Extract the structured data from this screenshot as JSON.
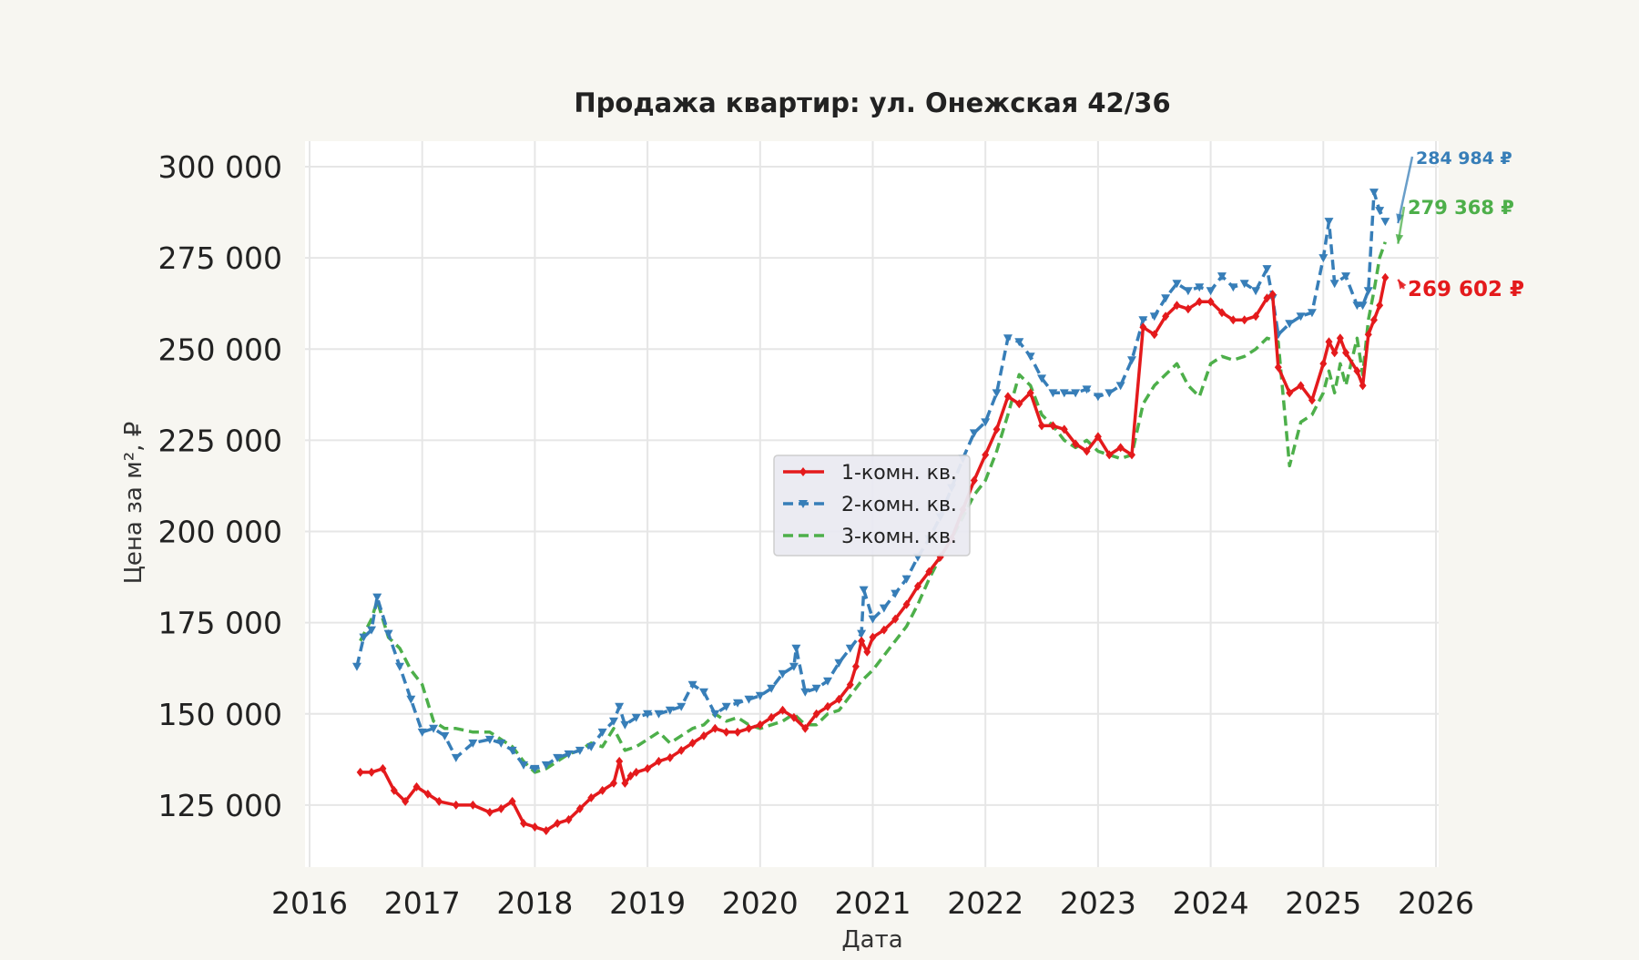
{
  "chart_data": {
    "type": "line",
    "title": "Продажа квартир: ул. Онежская 42/36",
    "xlabel": "Дата",
    "ylabel": "Цена за м², ₽",
    "xlim": [
      2016.0,
      2026.0
    ],
    "ylim": [
      108000,
      307000
    ],
    "x_ticks": [
      2016,
      2017,
      2018,
      2019,
      2020,
      2021,
      2022,
      2023,
      2024,
      2025,
      2026
    ],
    "x_tick_labels": [
      "2016",
      "2017",
      "2018",
      "2019",
      "2020",
      "2021",
      "2022",
      "2023",
      "2024",
      "2025",
      "2026"
    ],
    "y_ticks": [
      125000,
      150000,
      175000,
      200000,
      225000,
      250000,
      275000,
      300000
    ],
    "y_tick_labels": [
      "125 000",
      "150 000",
      "175 000",
      "200 000",
      "225 000",
      "250 000",
      "275 000",
      "300 000"
    ],
    "grid": true,
    "legend_position": "center",
    "series": [
      {
        "name": "1-комн. кв.",
        "color": "#e41a1c",
        "linestyle": "solid",
        "marker": "diamond",
        "x": [
          2016.45,
          2016.55,
          2016.65,
          2016.75,
          2016.85,
          2016.95,
          2017.05,
          2017.15,
          2017.3,
          2017.45,
          2017.6,
          2017.7,
          2017.8,
          2017.9,
          2018.0,
          2018.1,
          2018.2,
          2018.3,
          2018.4,
          2018.5,
          2018.6,
          2018.7,
          2018.75,
          2018.8,
          2018.85,
          2018.9,
          2019.0,
          2019.1,
          2019.2,
          2019.3,
          2019.4,
          2019.5,
          2019.6,
          2019.7,
          2019.8,
          2019.9,
          2020.0,
          2020.1,
          2020.2,
          2020.3,
          2020.4,
          2020.5,
          2020.6,
          2020.7,
          2020.8,
          2020.85,
          2020.9,
          2020.95,
          2021.0,
          2021.1,
          2021.2,
          2021.3,
          2021.4,
          2021.5,
          2021.6,
          2021.7,
          2021.8,
          2021.9,
          2022.0,
          2022.1,
          2022.2,
          2022.3,
          2022.4,
          2022.5,
          2022.6,
          2022.7,
          2022.8,
          2022.9,
          2023.0,
          2023.1,
          2023.2,
          2023.3,
          2023.4,
          2023.5,
          2023.6,
          2023.7,
          2023.8,
          2023.9,
          2024.0,
          2024.1,
          2024.2,
          2024.3,
          2024.4,
          2024.5,
          2024.55,
          2024.6,
          2024.7,
          2024.8,
          2024.9,
          2025.0,
          2025.05,
          2025.1,
          2025.15,
          2025.2,
          2025.3,
          2025.35,
          2025.4,
          2025.45,
          2025.5,
          2025.55
        ],
        "values": [
          134000,
          134000,
          135000,
          129000,
          126000,
          130000,
          128000,
          126000,
          125000,
          125000,
          123000,
          124000,
          126000,
          120000,
          119000,
          118000,
          120000,
          121000,
          124000,
          127000,
          129000,
          131000,
          137000,
          131000,
          133000,
          134000,
          135000,
          137000,
          138000,
          140000,
          142000,
          144000,
          146000,
          145000,
          145000,
          146000,
          147000,
          149000,
          151000,
          149000,
          146000,
          150000,
          152000,
          154000,
          158000,
          163000,
          170000,
          167000,
          171000,
          173000,
          176000,
          180000,
          185000,
          189000,
          193000,
          198000,
          206000,
          214000,
          221000,
          228000,
          237000,
          235000,
          238000,
          229000,
          229000,
          228000,
          224000,
          222000,
          226000,
          221000,
          223000,
          221000,
          256000,
          254000,
          259000,
          262000,
          261000,
          263000,
          263000,
          260000,
          258000,
          258000,
          259000,
          264000,
          265000,
          245000,
          238000,
          240000,
          236000,
          246000,
          252000,
          249000,
          253000,
          249000,
          244000,
          240000,
          254000,
          258000,
          262000,
          269602
        ]
      },
      {
        "name": "2-комн. кв.",
        "color": "#377eb8",
        "linestyle": "dashed",
        "marker": "triangle-down",
        "x": [
          2016.42,
          2016.48,
          2016.55,
          2016.6,
          2016.7,
          2016.8,
          2016.9,
          2017.0,
          2017.1,
          2017.2,
          2017.3,
          2017.45,
          2017.6,
          2017.7,
          2017.8,
          2017.9,
          2018.0,
          2018.1,
          2018.2,
          2018.3,
          2018.4,
          2018.5,
          2018.6,
          2018.7,
          2018.75,
          2018.8,
          2018.9,
          2019.0,
          2019.1,
          2019.2,
          2019.3,
          2019.4,
          2019.5,
          2019.6,
          2019.7,
          2019.8,
          2019.9,
          2020.0,
          2020.1,
          2020.2,
          2020.3,
          2020.32,
          2020.4,
          2020.5,
          2020.6,
          2020.7,
          2020.8,
          2020.9,
          2020.92,
          2021.0,
          2021.1,
          2021.2,
          2021.3,
          2021.4,
          2021.5,
          2021.6,
          2021.7,
          2021.8,
          2021.9,
          2022.0,
          2022.1,
          2022.2,
          2022.3,
          2022.4,
          2022.5,
          2022.6,
          2022.7,
          2022.8,
          2022.9,
          2023.0,
          2023.1,
          2023.2,
          2023.3,
          2023.4,
          2023.5,
          2023.6,
          2023.7,
          2023.8,
          2023.9,
          2024.0,
          2024.1,
          2024.2,
          2024.3,
          2024.4,
          2024.5,
          2024.55,
          2024.6,
          2024.7,
          2024.8,
          2024.9,
          2025.0,
          2025.05,
          2025.1,
          2025.2,
          2025.3,
          2025.35,
          2025.4,
          2025.45,
          2025.5,
          2025.55
        ],
        "values": [
          163000,
          171000,
          173000,
          182000,
          172000,
          163000,
          154000,
          145000,
          146000,
          144000,
          138000,
          142000,
          143000,
          142000,
          140000,
          136000,
          135000,
          136000,
          138000,
          139000,
          140000,
          141000,
          145000,
          148000,
          152000,
          147000,
          149000,
          150000,
          150000,
          151000,
          152000,
          158000,
          156000,
          150000,
          152000,
          153000,
          154000,
          155000,
          157000,
          161000,
          163000,
          168000,
          156000,
          157000,
          159000,
          164000,
          168000,
          172000,
          184000,
          176000,
          179000,
          183000,
          187000,
          193000,
          198000,
          204000,
          212000,
          220000,
          227000,
          230000,
          238000,
          253000,
          252000,
          248000,
          242000,
          238000,
          238000,
          238000,
          239000,
          237000,
          238000,
          240000,
          247000,
          258000,
          259000,
          264000,
          268000,
          266000,
          267000,
          266000,
          270000,
          267000,
          268000,
          266000,
          272000,
          264000,
          254000,
          257000,
          259000,
          260000,
          275000,
          285000,
          268000,
          270000,
          262000,
          262000,
          266000,
          293000,
          288000,
          284984
        ]
      },
      {
        "name": "3-комн. кв.",
        "color": "#4daf4a",
        "linestyle": "dashed",
        "marker": "none",
        "x": [
          2016.45,
          2016.55,
          2016.6,
          2016.7,
          2016.8,
          2016.9,
          2017.0,
          2017.1,
          2017.2,
          2017.3,
          2017.45,
          2017.6,
          2017.7,
          2017.8,
          2017.9,
          2018.0,
          2018.1,
          2018.2,
          2018.3,
          2018.4,
          2018.5,
          2018.6,
          2018.7,
          2018.8,
          2018.9,
          2019.0,
          2019.1,
          2019.2,
          2019.3,
          2019.4,
          2019.5,
          2019.6,
          2019.7,
          2019.8,
          2019.9,
          2020.0,
          2020.1,
          2020.2,
          2020.3,
          2020.4,
          2020.5,
          2020.6,
          2020.7,
          2020.8,
          2020.9,
          2021.0,
          2021.1,
          2021.2,
          2021.3,
          2021.4,
          2021.5,
          2021.6,
          2021.7,
          2021.8,
          2021.9,
          2022.0,
          2022.1,
          2022.2,
          2022.3,
          2022.4,
          2022.5,
          2022.6,
          2022.7,
          2022.8,
          2022.9,
          2023.0,
          2023.1,
          2023.2,
          2023.3,
          2023.4,
          2023.5,
          2023.6,
          2023.7,
          2023.8,
          2023.9,
          2024.0,
          2024.1,
          2024.2,
          2024.3,
          2024.4,
          2024.5,
          2024.6,
          2024.7,
          2024.8,
          2024.9,
          2025.0,
          2025.05,
          2025.1,
          2025.15,
          2025.2,
          2025.3,
          2025.35,
          2025.4,
          2025.45,
          2025.5,
          2025.55
        ],
        "values": [
          170000,
          176000,
          181000,
          171000,
          168000,
          162000,
          158000,
          148000,
          146000,
          146000,
          145000,
          145000,
          143000,
          141000,
          137000,
          134000,
          135000,
          137000,
          139000,
          140000,
          142000,
          141000,
          146000,
          140000,
          141000,
          143000,
          145000,
          142000,
          144000,
          146000,
          147000,
          150000,
          148000,
          149000,
          147000,
          146000,
          147000,
          148000,
          150000,
          147000,
          147000,
          150000,
          151000,
          155000,
          159000,
          162000,
          166000,
          170000,
          174000,
          180000,
          187000,
          193000,
          198000,
          204000,
          210000,
          214000,
          222000,
          232000,
          243000,
          240000,
          232000,
          229000,
          225000,
          223000,
          225000,
          222000,
          221000,
          220000,
          221000,
          235000,
          240000,
          243000,
          246000,
          240000,
          237000,
          246000,
          248000,
          247000,
          248000,
          250000,
          253000,
          252000,
          218000,
          230000,
          232000,
          238000,
          244000,
          238000,
          246000,
          240000,
          253000,
          243000,
          258000,
          266000,
          275000,
          279368
        ]
      }
    ],
    "annotations": [
      {
        "series": "2-комн. кв.",
        "text": "284 984 ₽",
        "color": "#377eb8"
      },
      {
        "series": "3-комн. кв.",
        "text": "279 368 ₽",
        "color": "#4daf4a"
      },
      {
        "series": "1-комн. кв.",
        "text": "269 602 ₽",
        "color": "#e41a1c"
      }
    ]
  }
}
